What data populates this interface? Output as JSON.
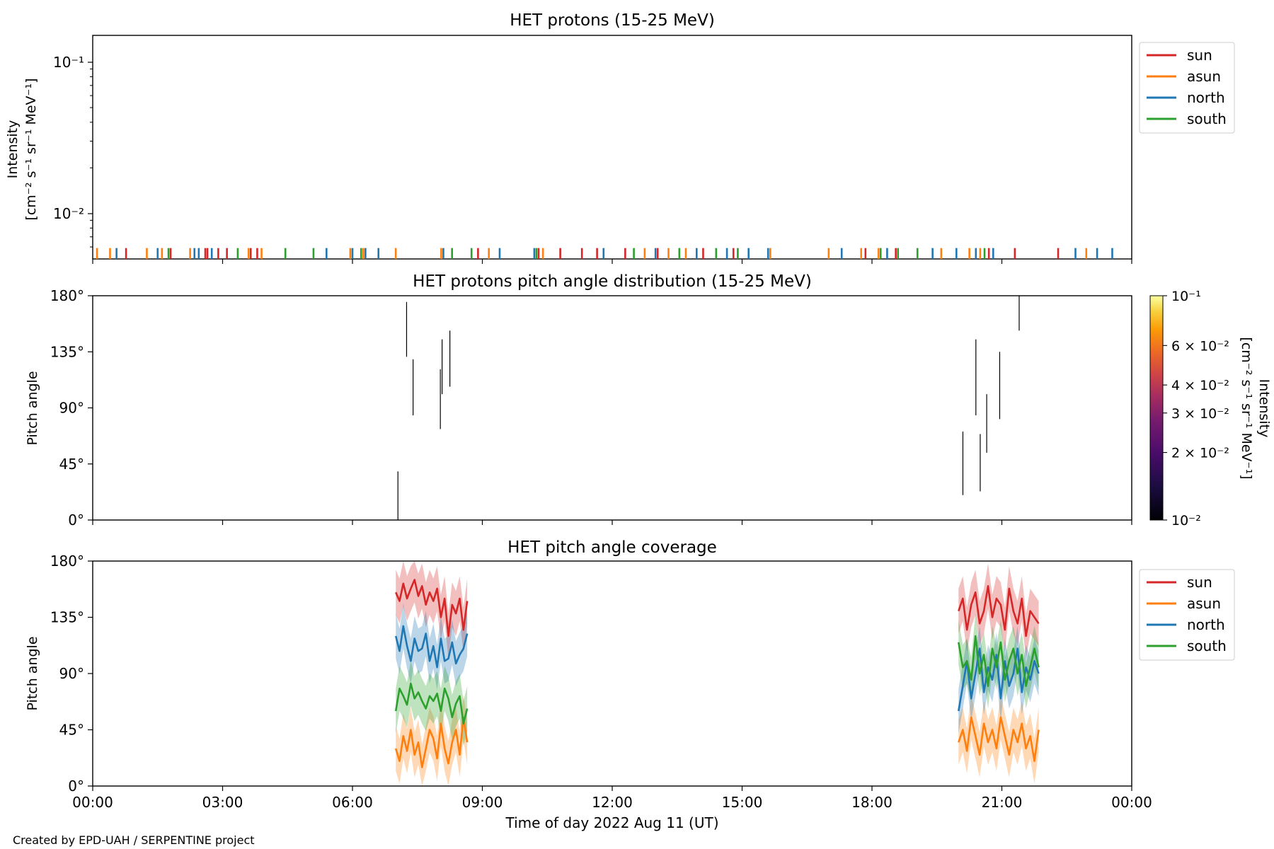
{
  "footer_credit": "Created by EPD-UAH / SERPENTINE project",
  "series_colors": {
    "sun": "#d62728",
    "asun": "#ff7f0e",
    "north": "#1f77b4",
    "south": "#2ca02c"
  },
  "legend_labels": [
    "sun",
    "asun",
    "north",
    "south"
  ],
  "chart_data": [
    {
      "type": "line",
      "title": "HET protons (15-25 MeV)",
      "ylabel_line1": "Intensity",
      "ylabel_line2": "[cm⁻² s⁻¹ sr⁻¹ MeV⁻¹]",
      "yscale": "log",
      "ylim": [
        0.005,
        0.15
      ],
      "y_tick_labels": [
        "10⁻¹",
        "10⁻²"
      ],
      "y_tick_values": [
        0.1,
        0.01
      ],
      "xlim": [
        "00:00",
        "24:00"
      ],
      "legend": "upper right outside",
      "note": "Only sparse near-floor spikes are visible; the intensity stays at or below about 0.006.",
      "spikes_hours": {
        "sun": [
          0.77,
          1.8,
          2.6,
          2.65,
          2.9,
          3.1,
          3.65,
          3.8,
          8.9,
          10.3,
          10.8,
          11.3,
          11.65,
          12.3,
          13.05,
          14.1,
          14.8,
          17.85,
          18.55,
          20.7,
          21.3,
          22.3
        ],
        "asun": [
          0.1,
          0.4,
          1.25,
          1.6,
          2.25,
          3.6,
          3.9,
          5.95,
          6.25,
          7.0,
          8.05,
          9.15,
          10.4,
          12.75,
          13.3,
          13.7,
          15.65,
          17.0,
          17.75,
          18.15,
          19.6,
          20.25,
          20.5,
          22.95
        ],
        "north": [
          0.55,
          1.5,
          2.35,
          2.45,
          2.75,
          5.4,
          6.0,
          6.3,
          6.6,
          8.1,
          9.4,
          10.2,
          11.8,
          13.0,
          13.95,
          14.65,
          15.15,
          15.6,
          17.3,
          18.35,
          19.4,
          19.95,
          20.4,
          20.8,
          22.7,
          23.2,
          23.55
        ],
        "south": [
          1.75,
          3.35,
          4.45,
          5.1,
          6.2,
          8.3,
          8.75,
          10.25,
          12.5,
          13.55,
          14.4,
          14.9,
          18.2,
          18.6,
          19.05,
          20.6
        ]
      }
    },
    {
      "type": "heatmap",
      "title": "HET protons pitch angle distribution (15-25 MeV)",
      "ylabel": "Pitch angle",
      "ylim": [
        0,
        180
      ],
      "y_tick_labels": [
        "180°",
        "135°",
        "90°",
        "45°",
        "0°"
      ],
      "y_tick_values": [
        180,
        135,
        90,
        45,
        0
      ],
      "xlim": [
        "00:00",
        "24:00"
      ],
      "colorbar": {
        "scale": "log",
        "range": [
          0.01,
          0.1
        ],
        "tick_labels": [
          "10⁻¹",
          "6 × 10⁻²",
          "4 × 10⁻²",
          "3 × 10⁻²",
          "2 × 10⁻²",
          "10⁻²"
        ],
        "tick_values": [
          0.1,
          0.06,
          0.04,
          0.03,
          0.02,
          0.01
        ],
        "label_line1": "Intensity",
        "label_line2": "[cm⁻² s⁻¹ sr⁻¹ MeV⁻¹]",
        "colormap": "inferno"
      },
      "segments": [
        {
          "hour": 7.05,
          "pa_from": 0,
          "pa_to": 39
        },
        {
          "hour": 7.25,
          "pa_from": 131,
          "pa_to": 175
        },
        {
          "hour": 7.4,
          "pa_from": 84,
          "pa_to": 129
        },
        {
          "hour": 8.03,
          "pa_from": 73,
          "pa_to": 121
        },
        {
          "hour": 8.07,
          "pa_from": 101,
          "pa_to": 145
        },
        {
          "hour": 8.25,
          "pa_from": 107,
          "pa_to": 152
        },
        {
          "hour": 20.1,
          "pa_from": 20,
          "pa_to": 71
        },
        {
          "hour": 20.4,
          "pa_from": 84,
          "pa_to": 145
        },
        {
          "hour": 20.5,
          "pa_from": 23,
          "pa_to": 69
        },
        {
          "hour": 20.65,
          "pa_from": 54,
          "pa_to": 101
        },
        {
          "hour": 20.95,
          "pa_from": 81,
          "pa_to": 135
        },
        {
          "hour": 21.4,
          "pa_from": 152,
          "pa_to": 180
        }
      ]
    },
    {
      "type": "line",
      "title": "HET pitch angle coverage",
      "ylabel": "Pitch angle",
      "xlabel": "Time of day 2022 Aug 11 (UT)",
      "ylim": [
        0,
        180
      ],
      "y_tick_labels": [
        "180°",
        "135°",
        "90°",
        "45°",
        "0°"
      ],
      "y_tick_values": [
        180,
        135,
        90,
        45,
        0
      ],
      "xlim": [
        "00:00",
        "24:00"
      ],
      "x_tick_labels": [
        "00:00",
        "03:00",
        "06:00",
        "09:00",
        "12:00",
        "15:00",
        "18:00",
        "21:00",
        "00:00"
      ],
      "x_tick_hours": [
        0,
        3,
        6,
        9,
        12,
        15,
        18,
        21,
        24
      ],
      "legend": "upper right outside",
      "intervals": [
        {
          "start_hour": 7.0,
          "end_hour": 8.65,
          "series": [
            {
              "name": "sun",
              "values": [
                155,
                148,
                162,
                150,
                158,
                165,
                152,
                160,
                145,
                155,
                148,
                158,
                135,
                150,
                120,
                145,
                138,
                150,
                125,
                148
              ]
            },
            {
              "name": "asun",
              "values": [
                30,
                20,
                40,
                28,
                45,
                25,
                35,
                15,
                30,
                45,
                38,
                22,
                50,
                30,
                18,
                35,
                45,
                25,
                55,
                35
              ]
            },
            {
              "name": "north",
              "values": [
                120,
                108,
                128,
                112,
                100,
                118,
                108,
                110,
                122,
                100,
                112,
                95,
                118,
                100,
                102,
                115,
                98,
                105,
                110,
                122
              ]
            },
            {
              "name": "south",
              "values": [
                60,
                78,
                72,
                65,
                82,
                70,
                75,
                68,
                62,
                72,
                68,
                74,
                60,
                78,
                70,
                55,
                66,
                72,
                50,
                62
              ]
            }
          ]
        },
        {
          "start_hour": 20.0,
          "end_hour": 21.85,
          "series": [
            {
              "name": "sun",
              "values": [
                140,
                150,
                125,
                145,
                155,
                130,
                140,
                160,
                135,
                150,
                145,
                125,
                158,
                140,
                130,
                150,
                120,
                140,
                135,
                130
              ]
            },
            {
              "name": "asun",
              "values": [
                35,
                45,
                28,
                55,
                40,
                25,
                50,
                35,
                45,
                30,
                55,
                40,
                25,
                45,
                35,
                50,
                30,
                40,
                20,
                45
              ]
            },
            {
              "name": "north",
              "values": [
                60,
                80,
                100,
                70,
                90,
                110,
                75,
                95,
                85,
                105,
                70,
                100,
                80,
                90,
                110,
                75,
                95,
                85,
                100,
                90
              ]
            },
            {
              "name": "south",
              "values": [
                115,
                95,
                100,
                85,
                120,
                90,
                105,
                80,
                110,
                95,
                115,
                85,
                100,
                110,
                90,
                105,
                80,
                95,
                110,
                95
              ]
            }
          ]
        }
      ]
    }
  ]
}
